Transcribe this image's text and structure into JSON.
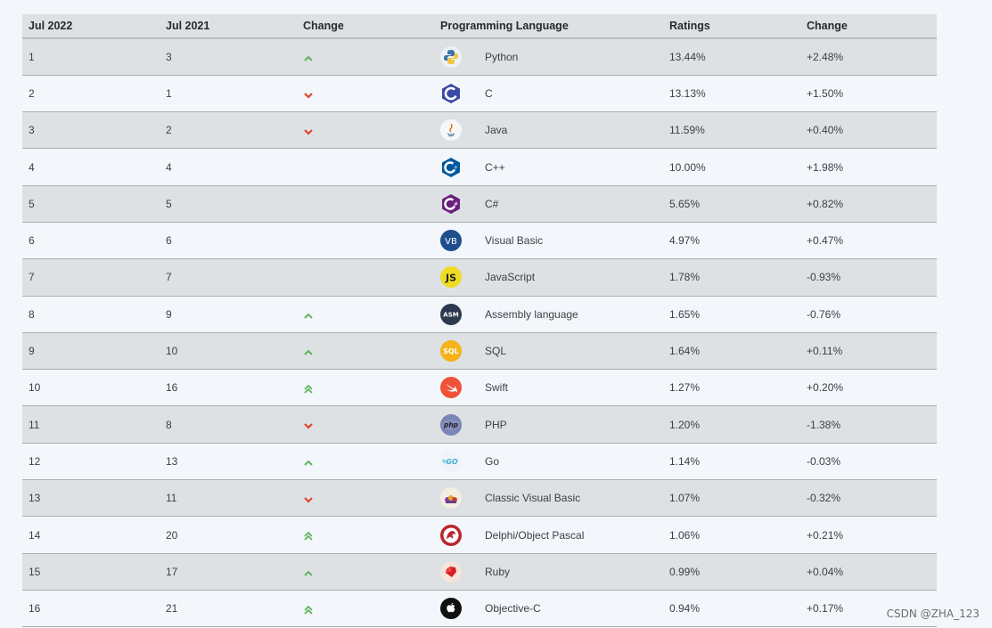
{
  "headers": {
    "col1": "Jul 2022",
    "col2": "Jul 2021",
    "col3": "Change",
    "col4": "Programming Language",
    "col5": "Ratings",
    "col6": "Change"
  },
  "colors": {
    "up": "#5fb35f",
    "down": "#e0452c"
  },
  "rows": [
    {
      "rank2022": "1",
      "rank2021": "3",
      "trend": "up",
      "language": "Python",
      "icon": "python-icon",
      "ratings": "13.44%",
      "change": "+2.48%"
    },
    {
      "rank2022": "2",
      "rank2021": "1",
      "trend": "down",
      "language": "C",
      "icon": "c-icon",
      "ratings": "13.13%",
      "change": "+1.50%"
    },
    {
      "rank2022": "3",
      "rank2021": "2",
      "trend": "down",
      "language": "Java",
      "icon": "java-icon",
      "ratings": "11.59%",
      "change": "+0.40%"
    },
    {
      "rank2022": "4",
      "rank2021": "4",
      "trend": "none",
      "language": "C++",
      "icon": "cpp-icon",
      "ratings": "10.00%",
      "change": "+1.98%"
    },
    {
      "rank2022": "5",
      "rank2021": "5",
      "trend": "none",
      "language": "C#",
      "icon": "csharp-icon",
      "ratings": "5.65%",
      "change": "+0.82%"
    },
    {
      "rank2022": "6",
      "rank2021": "6",
      "trend": "none",
      "language": "Visual Basic",
      "icon": "vb-icon",
      "ratings": "4.97%",
      "change": "+0.47%"
    },
    {
      "rank2022": "7",
      "rank2021": "7",
      "trend": "none",
      "language": "JavaScript",
      "icon": "js-icon",
      "ratings": "1.78%",
      "change": "-0.93%"
    },
    {
      "rank2022": "8",
      "rank2021": "9",
      "trend": "up",
      "language": "Assembly language",
      "icon": "asm-icon",
      "ratings": "1.65%",
      "change": "-0.76%"
    },
    {
      "rank2022": "9",
      "rank2021": "10",
      "trend": "up",
      "language": "SQL",
      "icon": "sql-icon",
      "ratings": "1.64%",
      "change": "+0.11%"
    },
    {
      "rank2022": "10",
      "rank2021": "16",
      "trend": "double-up",
      "language": "Swift",
      "icon": "swift-icon",
      "ratings": "1.27%",
      "change": "+0.20%"
    },
    {
      "rank2022": "11",
      "rank2021": "8",
      "trend": "down",
      "language": "PHP",
      "icon": "php-icon",
      "ratings": "1.20%",
      "change": "-1.38%"
    },
    {
      "rank2022": "12",
      "rank2021": "13",
      "trend": "up",
      "language": "Go",
      "icon": "go-icon",
      "ratings": "1.14%",
      "change": "-0.03%"
    },
    {
      "rank2022": "13",
      "rank2021": "11",
      "trend": "down",
      "language": "Classic Visual Basic",
      "icon": "classic-vb-icon",
      "ratings": "1.07%",
      "change": "-0.32%"
    },
    {
      "rank2022": "14",
      "rank2021": "20",
      "trend": "double-up",
      "language": "Delphi/Object Pascal",
      "icon": "delphi-icon",
      "ratings": "1.06%",
      "change": "+0.21%"
    },
    {
      "rank2022": "15",
      "rank2021": "17",
      "trend": "up",
      "language": "Ruby",
      "icon": "ruby-icon",
      "ratings": "0.99%",
      "change": "+0.04%"
    },
    {
      "rank2022": "16",
      "rank2021": "21",
      "trend": "double-up",
      "language": "Objective-C",
      "icon": "objective-c-icon",
      "ratings": "0.94%",
      "change": "+0.17%"
    }
  ],
  "watermark": "CSDN @ZHA_123"
}
